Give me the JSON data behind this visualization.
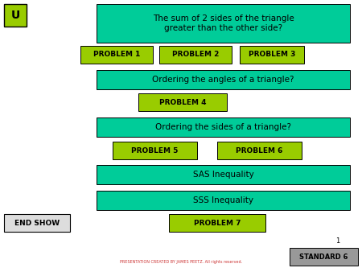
{
  "bg_color": "#ffffff",
  "teal_color": "#00cc99",
  "yellow_green_color": "#99cc00",
  "gray_color": "#999999",
  "title_text": "The sum of 2 sides of the triangle\ngreater than the other side?",
  "u_text": "U",
  "footer_text": "PRESENTATION CREATED BY JAMES PEETZ. All rights reserved.",
  "page_num": "1",
  "std_text": "STANDARD 6",
  "end_show_text": "END SHOW",
  "problems_row1": [
    "PROBLEM 1",
    "PROBLEM 2",
    "PROBLEM 3"
  ],
  "problem4": "PROBLEM 4",
  "problems_row2": [
    "PROBLEM 5",
    "PROBLEM 6"
  ],
  "sas_text": "SAS Inequality",
  "sss_text": "SSS Inequality",
  "problem7": "PROBLEM 7"
}
